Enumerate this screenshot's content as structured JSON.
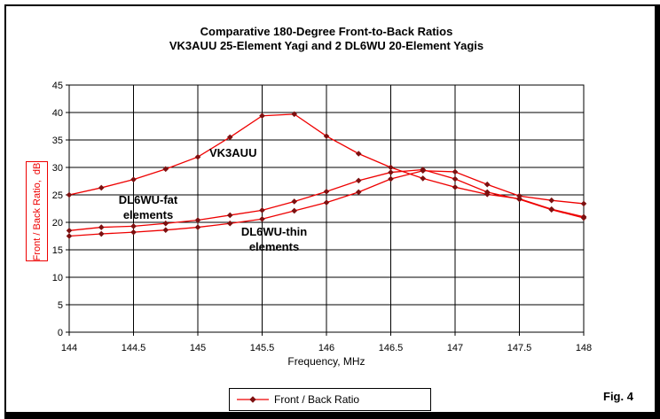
{
  "window": {
    "fig_label": "Fig. 4"
  },
  "chart": {
    "title_line1": "Comparative 180-Degree Front-to-Back Ratios",
    "title_line2": "VK3AUU 25-Element Yagi and 2 DL6WU 20-Element Yagis",
    "x_axis_label": "Frequency, MHz",
    "y_axis_label": "Front / Back Ratio,  dB",
    "legend_label": "Front / Back Ratio",
    "annotations": {
      "vk3auu": "VK3AUU",
      "fat": "DL6WU-fat\nelements",
      "thin": "DL6WU-thin\nelements"
    }
  },
  "chart_data": {
    "type": "line",
    "title": "Comparative 180-Degree Front-to-Back Ratios — VK3AUU 25-Element Yagi and 2 DL6WU 20-Element Yagis",
    "xlabel": "Frequency, MHz",
    "ylabel": "Front / Back Ratio, dB",
    "xlim": [
      144,
      148
    ],
    "ylim": [
      0,
      45
    ],
    "grid": true,
    "legend_position": "bottom-outside",
    "legend_entries": [
      "Front / Back Ratio"
    ],
    "marker": "diamond",
    "line_color": "#ee0000",
    "marker_color": "#7d1010",
    "grid_color": "#000000",
    "x_ticks": [
      144,
      144.5,
      145,
      145.5,
      146,
      146.5,
      147,
      147.5,
      148
    ],
    "x_tick_labels": [
      "144",
      "144.5",
      "145",
      "145.5",
      "146",
      "146.5",
      "147",
      "147.5",
      "148"
    ],
    "y_ticks": [
      0,
      5,
      10,
      15,
      20,
      25,
      30,
      35,
      40,
      45
    ],
    "x": [
      144,
      144.25,
      144.5,
      144.75,
      145,
      145.25,
      145.5,
      145.75,
      146,
      146.25,
      146.5,
      146.75,
      147,
      147.25,
      147.5,
      147.75,
      148
    ],
    "series": [
      {
        "name": "VK3AUU 25-element Yagi",
        "values": [
          25.0,
          26.3,
          27.8,
          29.7,
          31.9,
          35.5,
          39.4,
          39.7,
          35.7,
          32.5,
          30.0,
          28.0,
          26.4,
          25.1,
          24.3,
          22.4,
          21.0
        ]
      },
      {
        "name": "DL6WU-fat elements",
        "values": [
          18.5,
          19.1,
          19.3,
          19.8,
          20.4,
          21.3,
          22.2,
          23.8,
          25.6,
          27.6,
          29.1,
          29.6,
          27.9,
          25.5,
          24.2,
          22.3,
          20.8
        ]
      },
      {
        "name": "DL6WU-thin elements",
        "values": [
          17.5,
          17.9,
          18.2,
          18.6,
          19.1,
          19.8,
          20.6,
          22.1,
          23.6,
          25.5,
          27.9,
          29.4,
          29.2,
          26.9,
          24.8,
          24.0,
          23.4
        ]
      }
    ]
  }
}
